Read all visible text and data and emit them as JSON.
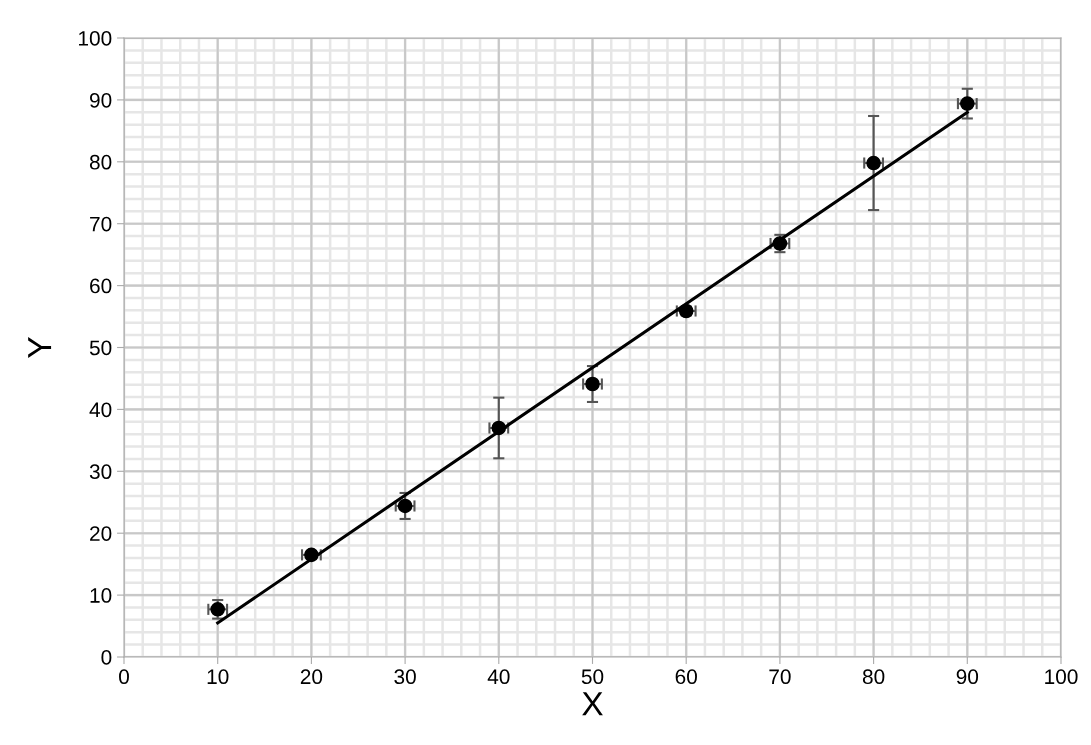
{
  "chart_data": {
    "type": "scatter",
    "xlabel": "X",
    "ylabel": "Y",
    "xlim": [
      0,
      100
    ],
    "ylim": [
      0,
      100
    ],
    "xticks": [
      0,
      10,
      20,
      30,
      40,
      50,
      60,
      70,
      80,
      90,
      100
    ],
    "yticks": [
      0,
      10,
      20,
      30,
      40,
      50,
      60,
      70,
      80,
      90,
      100
    ],
    "grid": true,
    "marker": "circle",
    "series": [
      {
        "color": "#000000",
        "x": [
          10,
          20,
          30,
          40,
          50,
          60,
          70,
          80,
          90
        ],
        "values": [
          7.7,
          16.5,
          24.4,
          37.0,
          44.1,
          55.9,
          66.8,
          79.8,
          89.4
        ],
        "errors": [
          1.5,
          0.6,
          2.1,
          4.9,
          2.9,
          0.7,
          1.4,
          7.6,
          2.4
        ],
        "xerrors": [
          1,
          1,
          1,
          1,
          1,
          1,
          1,
          1,
          1
        ]
      },
      {
        "type": "line",
        "color": "#000000",
        "x": [
          10,
          90
        ],
        "values": [
          5.5,
          88.0
        ],
        "marker": "none"
      }
    ]
  }
}
